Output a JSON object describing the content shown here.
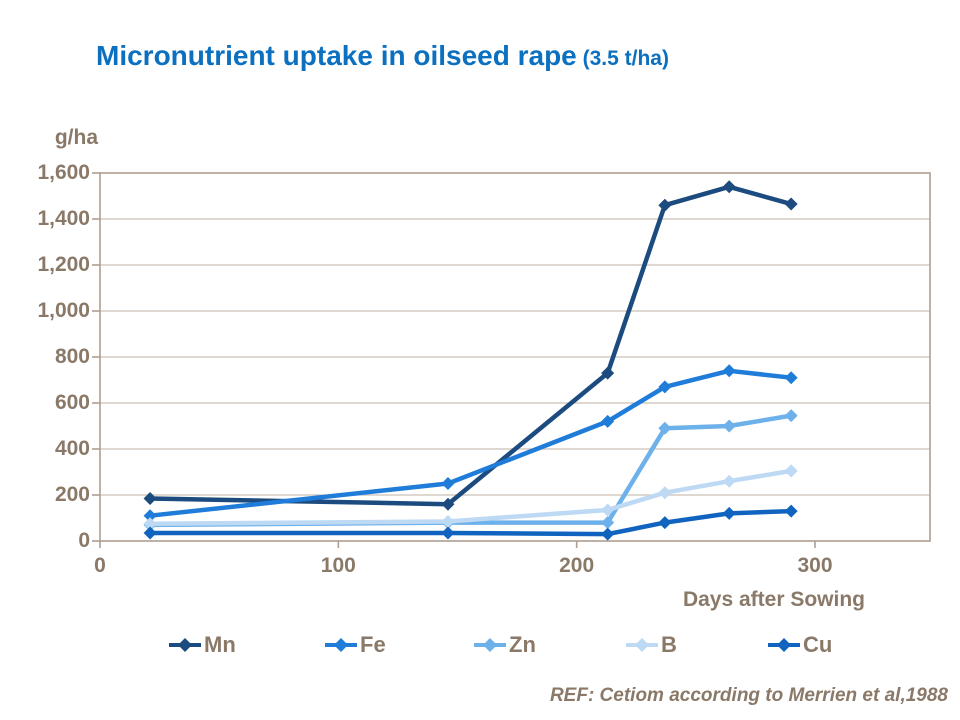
{
  "title": {
    "main": "Micronutrient uptake in oilseed rape",
    "suffix": " (3.5 t/ha)"
  },
  "colors": {
    "title_blue": "#0C70C0",
    "axis_text_brown": "#8A7968",
    "gridline": "#CCC0B4",
    "frame": "#AE9F92",
    "background": "#FFFFFF"
  },
  "chart_data": {
    "type": "line",
    "title": "Micronutrient uptake in oilseed rape (3.5 t/ha)",
    "xlabel": "Days after Sowing",
    "ylabel": "g/ha",
    "xlim": [
      0,
      348
    ],
    "ylim": [
      0,
      1600
    ],
    "grid": "horizontal",
    "legend_position": "bottom",
    "marker": "diamond",
    "x_ticks": [
      0,
      100,
      200,
      300
    ],
    "x_tick_labels": [
      "0",
      "100",
      "200",
      "300"
    ],
    "y_tick_labels": [
      "0",
      "200",
      "400",
      "600",
      "800",
      "1,000",
      "1,200",
      "1,400",
      "1,600"
    ],
    "x": [
      21,
      146,
      213,
      237,
      264,
      290
    ],
    "series": [
      {
        "name": "Mn",
        "color": "#1C4C7F",
        "values": [
          185,
          160,
          730,
          1460,
          1540,
          1465
        ]
      },
      {
        "name": "Fe",
        "color": "#1F7CD9",
        "values": [
          110,
          250,
          520,
          670,
          740,
          710
        ]
      },
      {
        "name": "Zn",
        "color": "#6DB1EB",
        "values": [
          70,
          80,
          80,
          490,
          500,
          545
        ]
      },
      {
        "name": "B",
        "color": "#BDD9F4",
        "values": [
          75,
          85,
          135,
          210,
          260,
          305
        ]
      },
      {
        "name": "Cu",
        "color": "#1064BF",
        "values": [
          35,
          35,
          30,
          80,
          120,
          130
        ]
      }
    ]
  },
  "footer": {
    "ref": "REF: Cetiom according to Merrien et al,1988"
  }
}
